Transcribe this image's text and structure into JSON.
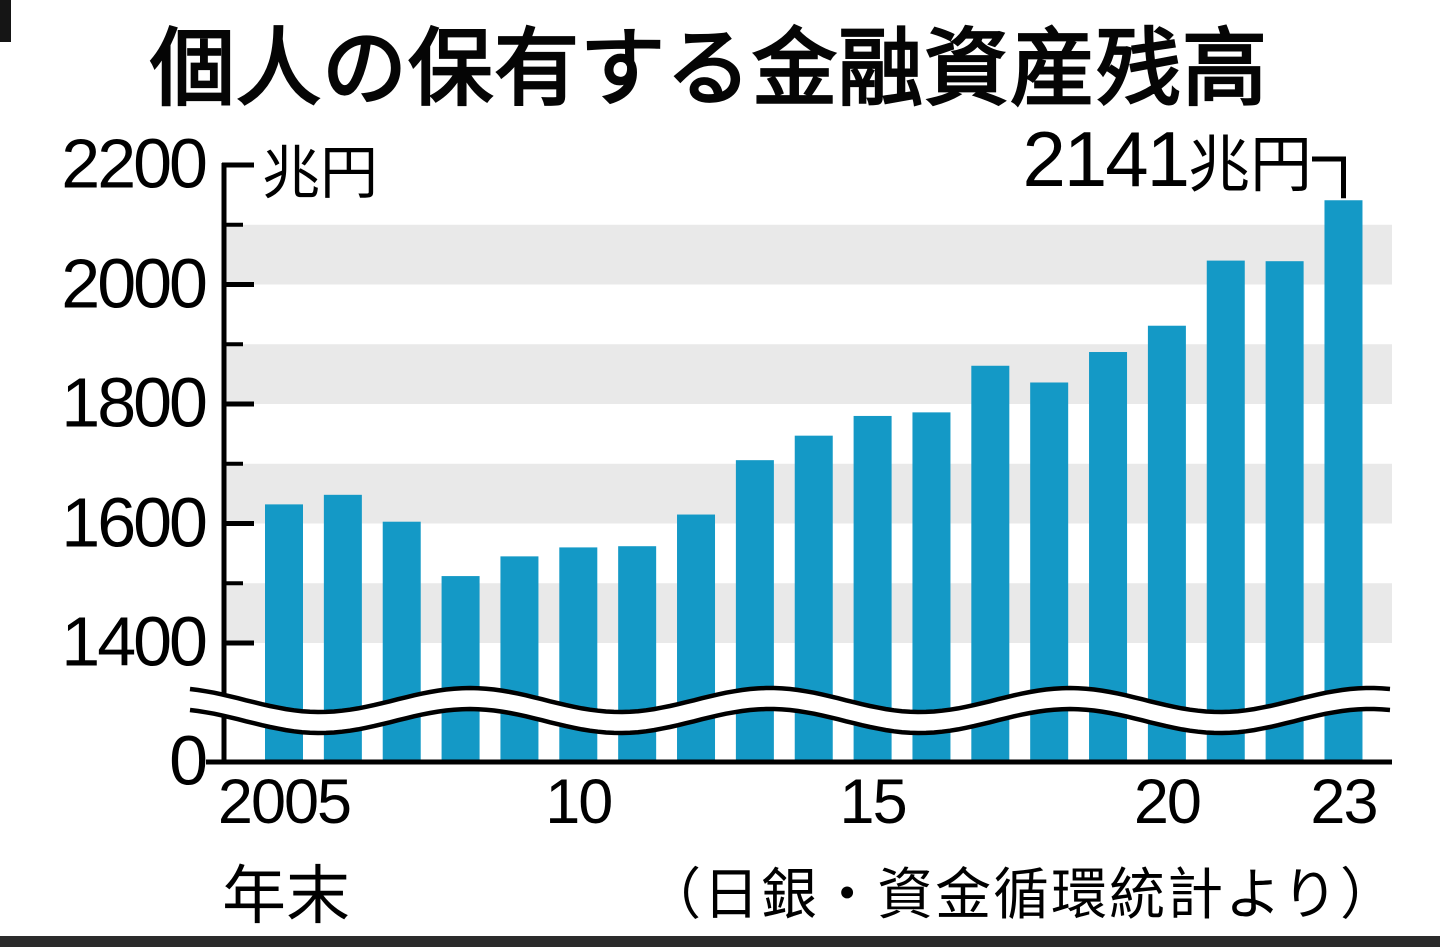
{
  "title": "個人の保有する金融資産残高",
  "y_axis": {
    "unit_label": "兆円",
    "ticks": [
      {
        "label": "2200",
        "value": 2200
      },
      {
        "label": "2000",
        "value": 2000
      },
      {
        "label": "1800",
        "value": 1800
      },
      {
        "label": "1600",
        "value": 1600
      },
      {
        "label": "1400",
        "value": 1400
      },
      {
        "label": "0",
        "value": 0
      }
    ],
    "minor_tick_values": [
      2100,
      1900,
      1700,
      1500
    ]
  },
  "x_axis": {
    "note": "年末",
    "ticks": [
      {
        "label": "2005",
        "bar_index": 0
      },
      {
        "label": "10",
        "bar_index": 5
      },
      {
        "label": "15",
        "bar_index": 10
      },
      {
        "label": "20",
        "bar_index": 15
      },
      {
        "label": "23",
        "bar_index": 18
      }
    ]
  },
  "annotation": {
    "value": "2141",
    "unit": "兆円",
    "target_year": "2023"
  },
  "source": "（日銀・資金循環統計より）",
  "colors": {
    "bar": "#1499C6",
    "grid_band": "#E9E9E9",
    "ink": "#000000",
    "footer_bar": "#2B2B2B",
    "background": "#FFFFFF"
  },
  "chart_data": {
    "type": "bar",
    "title": "個人の保有する金融資産残高",
    "ylabel": "兆円",
    "xlabel": "年末",
    "categories": [
      "2005",
      "2006",
      "2007",
      "2008",
      "2009",
      "2010",
      "2011",
      "2012",
      "2013",
      "2014",
      "2015",
      "2016",
      "2017",
      "2018",
      "2019",
      "2020",
      "2021",
      "2022",
      "2023"
    ],
    "values": [
      1632,
      1648,
      1603,
      1512,
      1545,
      1560,
      1562,
      1615,
      1706,
      1747,
      1780,
      1786,
      1864,
      1836,
      1887,
      1931,
      2040,
      2039,
      2141
    ],
    "ylim": [
      1400,
      2200
    ],
    "axis_break_below": 1400,
    "grid": "alternating horizontal bands",
    "gridband_ranges": [
      [
        2000,
        2100
      ],
      [
        1800,
        1900
      ],
      [
        1600,
        1700
      ],
      [
        1400,
        1500
      ]
    ],
    "legend": false,
    "annotation": {
      "text": "2141兆円",
      "target_category": "2023"
    },
    "source": "（日銀・資金循環統計より）"
  }
}
